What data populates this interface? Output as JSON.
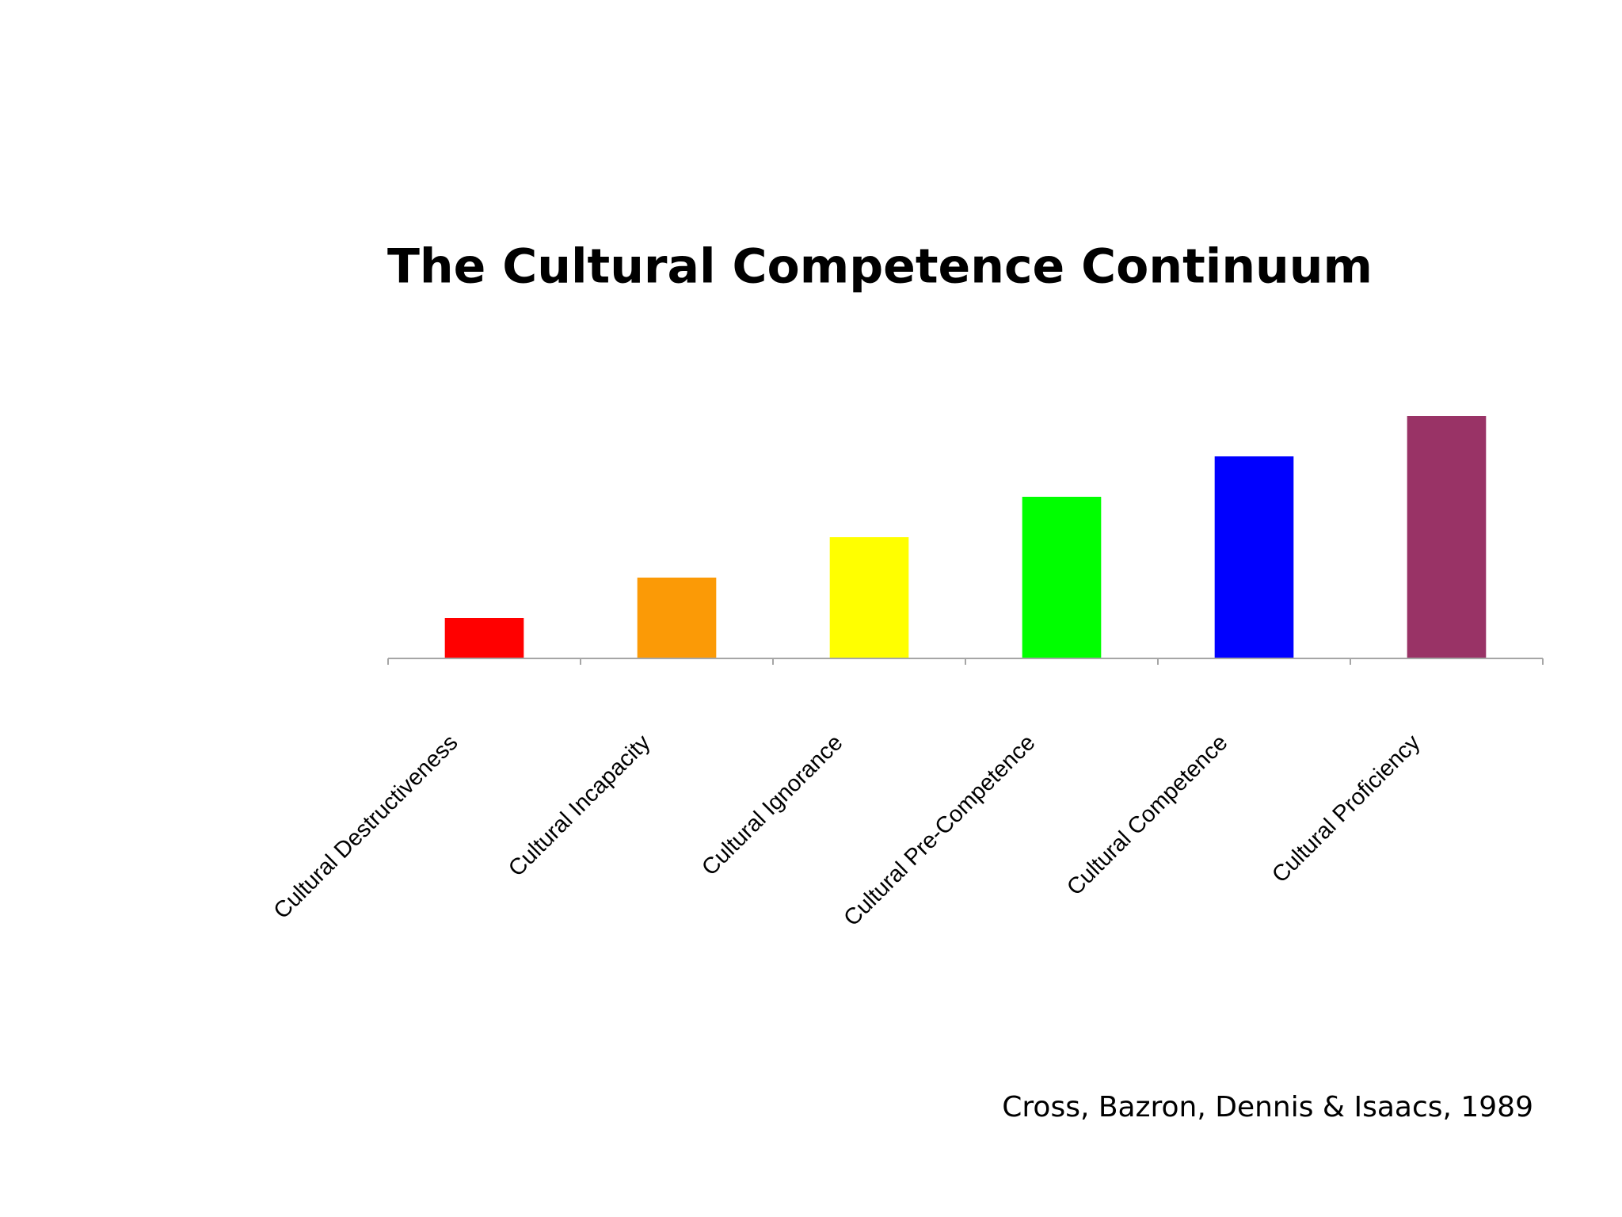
{
  "chart_data": {
    "type": "bar",
    "title": "The Cultural Competence Continuum",
    "categories": [
      "Cultural Destructiveness",
      "Cultural Incapacity",
      "Cultural Ignorance",
      "Cultural Pre-Competence",
      "Cultural Competence",
      "Cultural Proficiency"
    ],
    "values": [
      1,
      2,
      3,
      4,
      5,
      6
    ],
    "colors": [
      "#ff0000",
      "#fb9a06",
      "#ffff00",
      "#00ff00",
      "#0000ff",
      "#993366"
    ],
    "ylim": [
      0,
      6
    ],
    "source": "Cross, Bazron, Dennis & Isaacs, 1989"
  }
}
